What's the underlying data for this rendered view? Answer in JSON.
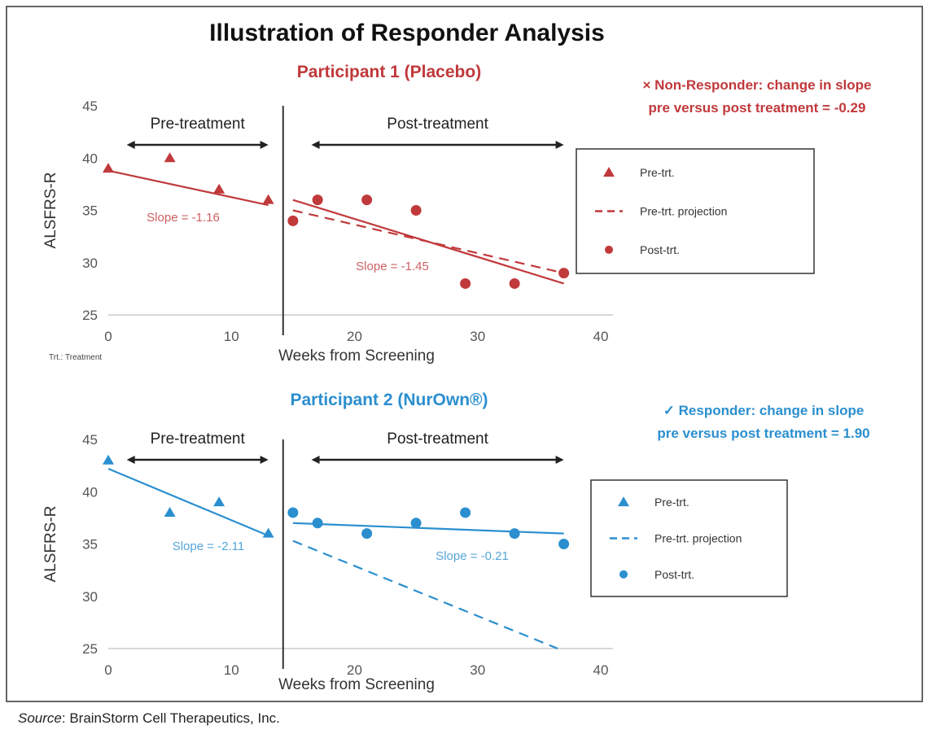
{
  "title": "Illustration of Responder Analysis",
  "footnote": "Trt.: Treatment",
  "source_label": "Source",
  "source_text": ": BrainStorm Cell Therapeutics, Inc.",
  "chart_data": [
    {
      "type": "scatter",
      "title": "Participant 1 (Placebo)",
      "color": "#c0393b",
      "xlabel": "Weeks from Screening",
      "ylabel": "ALSFRS-R",
      "xlim": [
        0,
        40
      ],
      "ylim": [
        25,
        45
      ],
      "xticks": [
        0,
        10,
        20,
        30,
        40
      ],
      "yticks": [
        25,
        30,
        35,
        40,
        45
      ],
      "annotation_lines": [
        "× Non-Responder: change in slope",
        "pre versus post treatment = -0.29"
      ],
      "phase_labels": [
        "Pre-treatment",
        "Post-treatment"
      ],
      "treatment_week": 14.2,
      "legend": [
        "Pre-trt.",
        "Pre-trt. projection",
        "Post-trt."
      ],
      "pre": {
        "x": [
          0,
          5,
          9,
          13
        ],
        "y": [
          39,
          40,
          37,
          36
        ],
        "fit": [
          [
            0,
            38.8
          ],
          [
            13,
            35.5
          ]
        ],
        "slope_label": "Slope = -1.16"
      },
      "post": {
        "x": [
          15,
          17,
          21,
          25,
          29,
          33,
          37
        ],
        "y": [
          34,
          36,
          36,
          35,
          28,
          28,
          29
        ],
        "fit": [
          [
            15,
            36
          ],
          [
            37,
            28
          ]
        ],
        "slope_label": "Slope = -1.45"
      },
      "projection": [
        [
          15,
          35
        ],
        [
          37,
          29
        ]
      ]
    },
    {
      "type": "scatter",
      "title": "Participant 2 (NurOwn®)",
      "color": "#2b8fcf",
      "xlabel": "Weeks from Screening",
      "ylabel": "ALSFRS-R",
      "xlim": [
        0,
        40
      ],
      "ylim": [
        25,
        45
      ],
      "xticks": [
        0,
        10,
        20,
        30,
        40
      ],
      "yticks": [
        25,
        30,
        35,
        40,
        45
      ],
      "annotation_lines": [
        "✓ Responder: change in slope",
        "pre versus post treatment = 1.90"
      ],
      "phase_labels": [
        "Pre-treatment",
        "Post-treatment"
      ],
      "treatment_week": 14.2,
      "legend": [
        "Pre-trt.",
        "Pre-trt. projection",
        "Post-trt."
      ],
      "pre": {
        "x": [
          0,
          5,
          9,
          13
        ],
        "y": [
          43,
          38,
          39,
          36
        ],
        "fit": [
          [
            0,
            42.2
          ],
          [
            13,
            35.8
          ]
        ],
        "slope_label": "Slope = -2.11"
      },
      "post": {
        "x": [
          15,
          17,
          21,
          25,
          29,
          33,
          37
        ],
        "y": [
          38,
          37,
          36,
          37,
          38,
          36,
          35
        ],
        "fit": [
          [
            15,
            37
          ],
          [
            37,
            36
          ]
        ],
        "slope_label": "Slope = -0.21"
      },
      "projection": [
        [
          15,
          35.3
        ],
        [
          36.5,
          25
        ]
      ]
    }
  ]
}
